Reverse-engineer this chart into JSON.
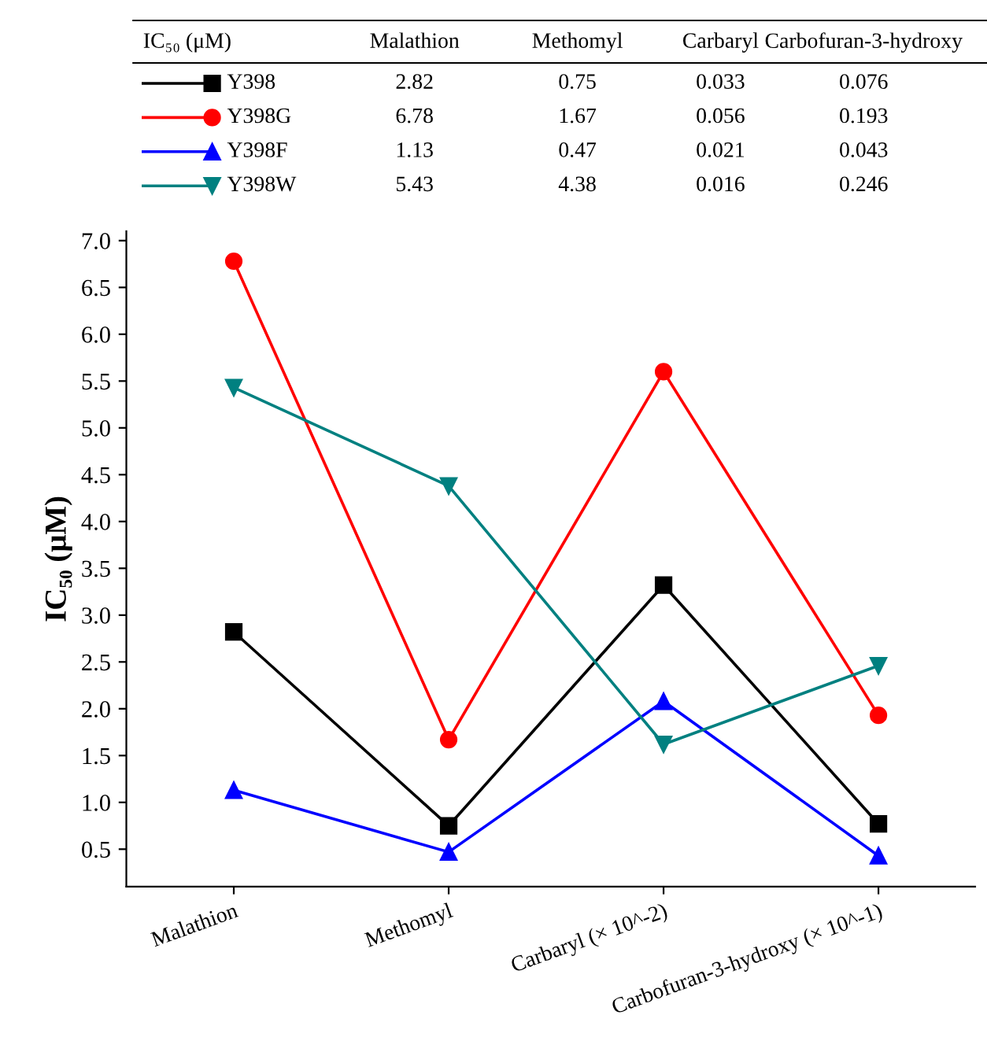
{
  "chart_data": {
    "type": "line",
    "ylabel": "IC₅₀ (μM)",
    "categories": [
      "Malathion",
      "Methomyl",
      "Carbaryl (× 10^-2)",
      "Carbofuran-3-hydroxy (× 10^-1)"
    ],
    "ylim": [
      0.1,
      7.1
    ],
    "yticks": [
      {
        "value": 0.5,
        "label": "0.5"
      },
      {
        "value": 1.0,
        "label": "1.0"
      },
      {
        "value": 1.5,
        "label": "1.5"
      },
      {
        "value": 2.0,
        "label": "2.0"
      },
      {
        "value": 2.5,
        "label": "2.5"
      },
      {
        "value": 3.0,
        "label": "3.0"
      },
      {
        "value": 3.5,
        "label": "3.5"
      },
      {
        "value": 4.0,
        "label": "4.0"
      },
      {
        "value": 4.5,
        "label": "4.5"
      },
      {
        "value": 5.0,
        "label": "5.0"
      },
      {
        "value": 5.5,
        "label": "5.5"
      },
      {
        "value": 6.0,
        "label": "6.0"
      },
      {
        "value": 6.5,
        "label": "6.5"
      },
      {
        "value": 7.0,
        "label": "7.0"
      }
    ],
    "annotations": [
      "IC₅₀ (μM)",
      "Malathion",
      "Methomyl",
      "Carbaryl",
      "Carbofuran-3-hydroxy",
      "2.82",
      "0.75",
      "0.033",
      "0.076",
      "6.78",
      "1.67",
      "0.056",
      "0.193",
      "1.13",
      "0.47",
      "0.021",
      "0.043",
      "5.43",
      "4.38",
      "0.016",
      "0.246"
    ],
    "legend": "top",
    "grid": false,
    "series": [
      {
        "name": "Y398",
        "color": "#000000",
        "marker": "square",
        "values": [
          2.82,
          0.75,
          3.32,
          0.77
        ]
      },
      {
        "name": "Y398G",
        "color": "#ff0000",
        "marker": "circle",
        "values": [
          6.78,
          1.67,
          5.6,
          1.93
        ]
      },
      {
        "name": "Y398F",
        "color": "#0000ff",
        "marker": "triangle",
        "values": [
          1.13,
          0.47,
          2.08,
          0.43
        ]
      },
      {
        "name": "Y398W",
        "color": "#008080",
        "marker": "triangle_down",
        "values": [
          5.43,
          4.38,
          1.62,
          2.46
        ]
      }
    ]
  }
}
